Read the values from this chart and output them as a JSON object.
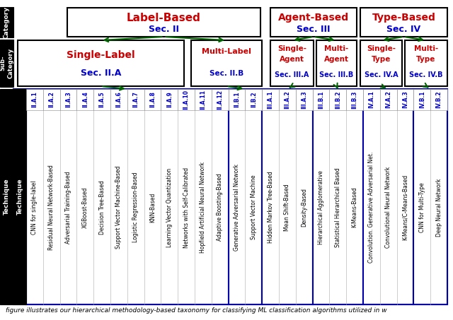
{
  "caption": "figure illustrates our hierarchical methodology-based taxonomy for classifying ML classification algorithms utilized in w",
  "all_techniques": [
    "CNN for single-label",
    "Residual Neural Network-Based",
    "Adversarial Training-Based",
    "XGBoost-Based",
    "Decision Tree-Based",
    "Support Vector Machine-Based",
    "Logistic Regression-Based",
    "KNN-Based",
    "Learning Vector Quantization",
    "Networks with Self-Calibrated",
    "Hopfield Artificial Neural Network",
    "Adaptive Boosting-Based",
    "Generative Adversarial Network",
    "Support Vector Machine",
    "Hidden Markov Tree-Based",
    "Mean Shift-Based",
    "Density-Based",
    "Hierarchical Agglomerative",
    "Statistical Hierarchical Based",
    "K-Means-Based",
    "Convolution. Generative Adversarial Net.",
    "Convolutional Neural Network",
    "K-Means/C-Means-Based",
    "CNN for Multi-Type",
    "Deep Neural Network"
  ],
  "all_ids": [
    "II.A.1",
    "II.A.2",
    "II.A.3",
    "II.A.4",
    "II.A.5",
    "II.A.6",
    "II.A.7",
    "II.A.8",
    "II.A.9",
    "II.A.10",
    "II.A.11",
    "II.A.12",
    "II.B.1",
    "II.B.2",
    "III.A.1",
    "III.A.2",
    "III.A.3",
    "III.B.1",
    "III.B.2",
    "III.B.3",
    "IV.A.1",
    "IV.A.2",
    "IV.A.3",
    "IV.B.1",
    "IV.B.2"
  ],
  "group_counts": [
    12,
    2,
    3,
    3,
    3,
    2
  ],
  "arrow_color": "#006400",
  "red": "#CC0000",
  "blue": "#0000CC"
}
